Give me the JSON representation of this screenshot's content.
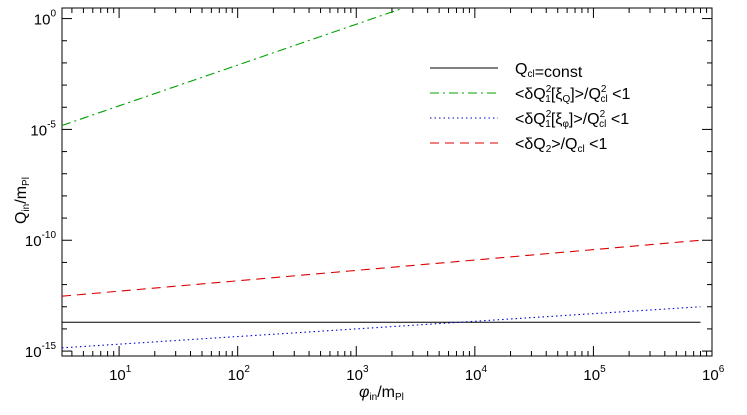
{
  "chart_data": {
    "type": "line",
    "x_scale": "log",
    "y_scale": "log",
    "xlim": [
      3.3,
      1000000
    ],
    "ylim": [
      6e-16,
      3
    ],
    "x_ticks": [
      {
        "value": 10,
        "base": "10",
        "exp": "1"
      },
      {
        "value": 100,
        "base": "10",
        "exp": "2"
      },
      {
        "value": 1000,
        "base": "10",
        "exp": "3"
      },
      {
        "value": 10000,
        "base": "10",
        "exp": "4"
      },
      {
        "value": 100000,
        "base": "10",
        "exp": "5"
      },
      {
        "value": 1000000,
        "base": "10",
        "exp": "6"
      }
    ],
    "y_ticks": [
      {
        "value": 1,
        "base": "10",
        "exp": "0"
      },
      {
        "value": 1e-05,
        "base": "10",
        "exp": "-5"
      },
      {
        "value": 1e-10,
        "base": "10",
        "exp": "-10"
      },
      {
        "value": 1e-15,
        "base": "10",
        "exp": "-15"
      }
    ],
    "xlabel": {
      "main": "φ",
      "sub": "in",
      "tail": "/m",
      "tail_sub": "Pl"
    },
    "ylabel": {
      "main": "Q",
      "sub": "in",
      "tail": "/m",
      "tail_sub": "Pl"
    },
    "grid": false,
    "legend_position": "top-right",
    "series": [
      {
        "key": "qcl",
        "color": "#000000",
        "dash": "solid",
        "x": [
          3.3,
          800000
        ],
        "y": [
          2e-14,
          2e-14
        ]
      },
      {
        "key": "xiq",
        "color": "#00a000",
        "dash": "dashdot",
        "x": [
          3.3,
          2500
        ],
        "y": [
          1.5e-05,
          3
        ]
      },
      {
        "key": "xiphi",
        "color": "#0000cc",
        "dash": "dotted",
        "x": [
          3.3,
          800000
        ],
        "y": [
          1.4e-15,
          1e-13
        ]
      },
      {
        "key": "dq2",
        "color": "#dd0000",
        "dash": "dashed",
        "x": [
          3.3,
          800000
        ],
        "y": [
          3e-13,
          1e-10
        ]
      }
    ],
    "legend": [
      {
        "series": "qcl",
        "text": "Q",
        "sub": "cl",
        "tail": "=const"
      },
      {
        "series": "xiq",
        "text": "<δQ",
        "sup": "2",
        "sub": "1",
        "bracket": "[ξ",
        "bsub": "Q",
        "close": "]>/Q",
        "csup": "2",
        "csub": "cl",
        "tail": " <1"
      },
      {
        "series": "xiphi",
        "text": "<δQ",
        "sup": "2",
        "sub": "1",
        "bracket": "[ξ",
        "bsub": "φ",
        "close": "]>/Q",
        "csup": "2",
        "csub": "cl",
        "tail": " <1"
      },
      {
        "series": "dq2",
        "text": "<δQ",
        "sup": "",
        "sub": "2",
        "bracket": "",
        "bsub": "",
        "close": ">/Q",
        "csup": "",
        "csub": "cl",
        "tail": " <1"
      }
    ]
  }
}
